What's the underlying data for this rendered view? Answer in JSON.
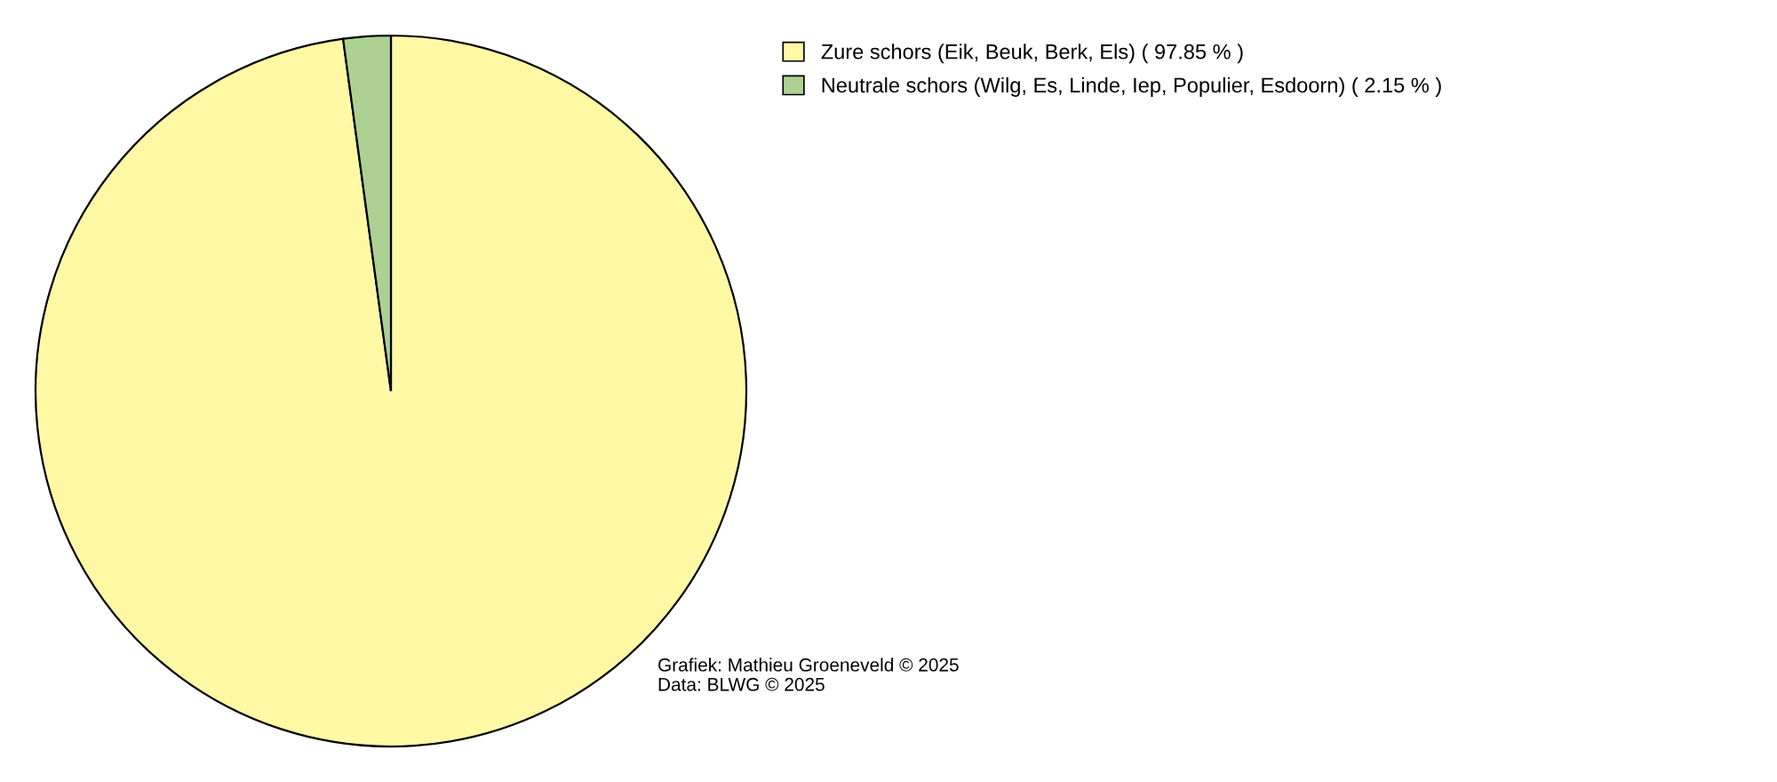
{
  "chart_data": {
    "type": "pie",
    "categories": [
      "Zure schors (Eik, Beuk, Berk, Els)",
      "Neutrale schors (Wilg, Es, Linde, Iep, Populier, Esdoorn)"
    ],
    "values": [
      97.85,
      2.15
    ],
    "value_labels": [
      "( 97.85 % )",
      "( 2.15 % )"
    ],
    "colors": [
      "#fff8a5",
      "#acd193"
    ],
    "legend": "top right",
    "annotations": [
      "Grafiek: Mathieu Groeneveld © 2025",
      "Data: BLWG © 2025"
    ]
  }
}
